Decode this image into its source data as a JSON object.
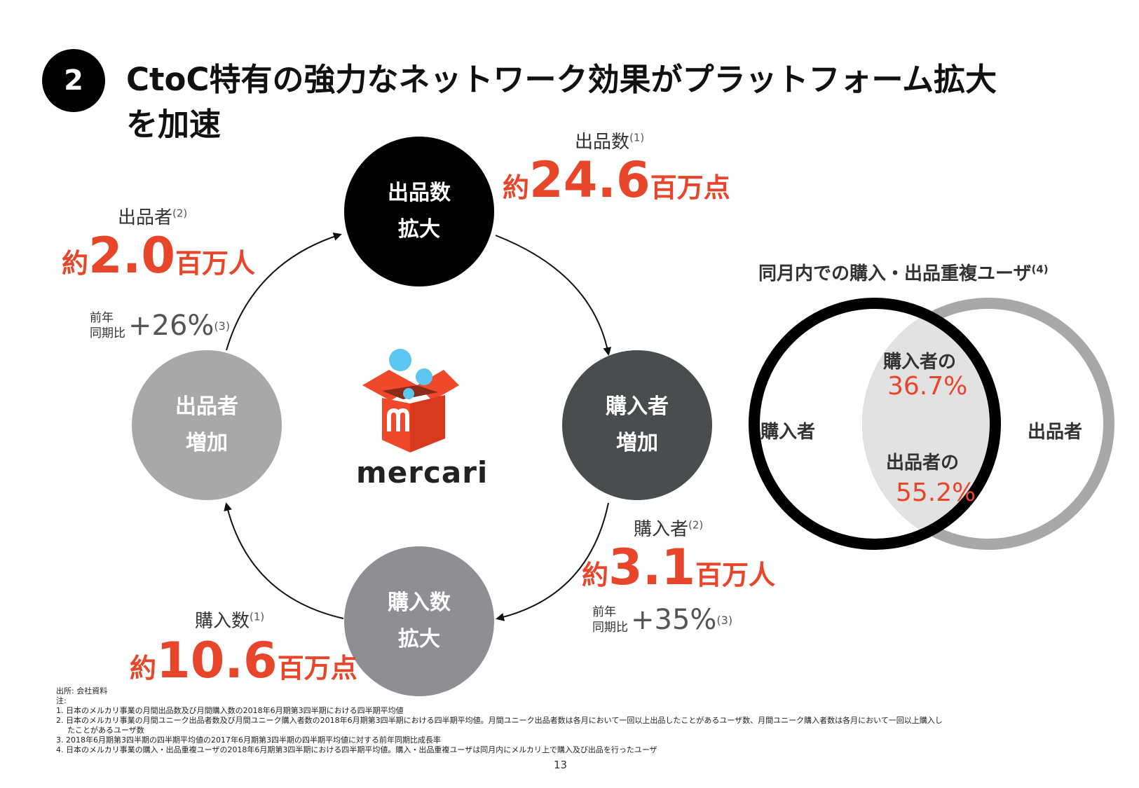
{
  "header": {
    "section_number": "2",
    "title_line1": "CtoC特有の強力なネットワーク効果がプラットフォーム拡大",
    "title_line2": "を加速"
  },
  "cycle": {
    "top_circle": {
      "line1": "出品数",
      "line2": "拡大",
      "color": "#000000"
    },
    "right_circle": {
      "line1": "購入者",
      "line2": "増加",
      "color": "#4a4d4e"
    },
    "bottom_circle": {
      "line1": "購入数",
      "line2": "拡大",
      "color": "#8e8e93"
    },
    "left_circle": {
      "line1": "出品者",
      "line2": "増加",
      "color": "#a8a8a8"
    }
  },
  "logo": {
    "text": "mercari",
    "brand_color": "#f0482b",
    "bubble_color": "#5bc6f0"
  },
  "metrics": {
    "listings": {
      "label": "出品数",
      "note": "(1)",
      "prefix": "約",
      "value": "24.6",
      "unit": "百万点"
    },
    "sellers": {
      "label": "出品者",
      "note": "(2)",
      "prefix": "約",
      "value": "2.0",
      "unit": "百万人",
      "yoy_label_1": "前年",
      "yoy_label_2": "同期比",
      "yoy_value": "+26%",
      "yoy_note": "(3)"
    },
    "buyers": {
      "label": "購入者",
      "note": "(2)",
      "prefix": "約",
      "value": "3.1",
      "unit": "百万人",
      "yoy_label_1": "前年",
      "yoy_label_2": "同期比",
      "yoy_value": "+35%",
      "yoy_note": "(3)"
    },
    "purchases": {
      "label": "購入数",
      "note": "(1)",
      "prefix": "約",
      "value": "10.6",
      "unit": "百万点"
    }
  },
  "venn": {
    "title": "同月内での購入・出品重複ユーザ",
    "title_note": "(4)",
    "left_label": "購入者",
    "right_label": "出品者",
    "overlap_buyers_label": "購入者の",
    "overlap_buyers_pct": "36.7%",
    "overlap_sellers_label": "出品者の",
    "overlap_sellers_pct": "55.2%",
    "left_color": "#000000",
    "right_color": "#a8a8a8",
    "overlap_color": "#e2e2e2"
  },
  "notes": {
    "source": "出所: 会社資料",
    "heading": "注:",
    "items": [
      "1.  日本のメルカリ事業の月間出品数及び月間購入数の2018年6月期第3四半期における四半期平均値",
      "2.  日本のメルカリ事業の月間ユニーク出品者数及び月間ユニーク購入者数の2018年6月期第3四半期における四半期平均値。月間ユニーク出品者数は各月において一回以上出品したことがあるユーザ数、月間ユニーク購入者数は各月において一回以上購入し",
      "     たことがあるユーザ数",
      "3.  2018年6月期第3四半期の四半期平均値の2017年6月期第3四半期の四半期平均値に対する前年同期比成長率",
      "4.  日本のメルカリ事業の購入・出品重複ユーザの2018年6月期第3四半期における四半期平均値。購入・出品重複ユーザは同月内にメルカリ上で購入及び出品を行ったユーザ"
    ]
  },
  "page_number": "13"
}
